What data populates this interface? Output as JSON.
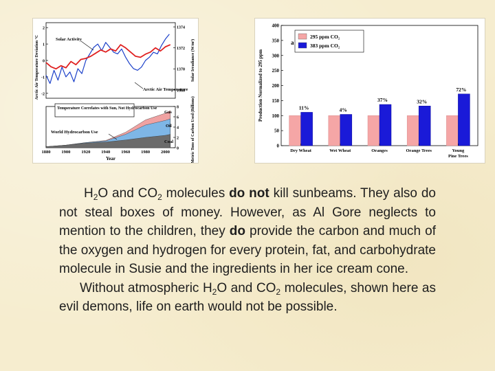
{
  "chart_data": [
    {
      "type": "line",
      "title": "",
      "xlabel": "Year",
      "ylabel_left": "Arctic Air Temperature Deviation °C",
      "ylabel_right": "Solar Irradiance (W/m²)",
      "ylabel_right2": "Metric Tons of Carbon Used (Billions)",
      "x_ticks": [
        "1880",
        "1900",
        "1920",
        "1940",
        "1960",
        "1980",
        "2000"
      ],
      "y_ticks_left": [
        "-2",
        "-1",
        "0",
        "1",
        "2"
      ],
      "y_ticks_right": [
        "1368",
        "1370",
        "1372",
        "1374"
      ],
      "y_ticks_carbon": [
        "0",
        "2",
        "4",
        "6",
        "8"
      ],
      "annotations": {
        "solar_activity": "Solar Activity",
        "arctic_air_temperature": "Arctic Air Temperature",
        "temp_correlates": "Temperature Correlates with Sun, Not Hydrocarbon Use",
        "world_hydrocarbon_use": "World Hydrocarbon Use",
        "gas": "Gas",
        "oil": "Oil",
        "coal": "Coal"
      },
      "x_range": [
        1880,
        2010
      ],
      "series": [
        {
          "name": "Solar Activity",
          "axis": "Solar Irradiance (W/m²)",
          "color": "#e02020",
          "x": [
            1880,
            1885,
            1890,
            1895,
            1900,
            1905,
            1910,
            1915,
            1920,
            1925,
            1930,
            1935,
            1940,
            1945,
            1950,
            1955,
            1960,
            1965,
            1970,
            1975,
            1980,
            1985,
            1990,
            1995,
            2000,
            2005
          ],
          "values": [
            1370.6,
            1370.2,
            1370.0,
            1370.3,
            1370.1,
            1370.7,
            1370.4,
            1370.9,
            1371.0,
            1371.2,
            1371.5,
            1371.8,
            1371.6,
            1371.9,
            1371.7,
            1372.3,
            1372.0,
            1371.6,
            1371.2,
            1371.1,
            1371.4,
            1371.6,
            1372.0,
            1371.7,
            1372.1,
            1372.3
          ]
        },
        {
          "name": "Arctic Air Temperature",
          "axis": "Arctic Air Temperature Deviation °C",
          "color": "#1a3fc9",
          "x": [
            1880,
            1884,
            1888,
            1892,
            1896,
            1900,
            1904,
            1908,
            1912,
            1916,
            1920,
            1924,
            1928,
            1932,
            1936,
            1940,
            1944,
            1948,
            1952,
            1956,
            1960,
            1964,
            1968,
            1972,
            1976,
            1980,
            1984,
            1988,
            1992,
            1996,
            2000,
            2004
          ],
          "values": [
            -0.9,
            -1.4,
            -0.6,
            -1.2,
            -0.4,
            -1.0,
            -0.7,
            -1.3,
            -0.5,
            -0.8,
            0.0,
            0.4,
            0.8,
            1.0,
            0.6,
            1.1,
            0.8,
            0.5,
            0.4,
            0.7,
            0.2,
            -0.2,
            -0.5,
            -0.6,
            -0.4,
            0.0,
            0.2,
            0.5,
            0.4,
            0.9,
            1.3,
            1.6
          ]
        },
        {
          "name": "Coal",
          "axis": "Metric Tons of Carbon Used (Billions)",
          "color": "#6b6b6b",
          "x": [
            1880,
            1900,
            1920,
            1940,
            1960,
            1980,
            2000,
            2005
          ],
          "values": [
            0.2,
            0.5,
            0.9,
            1.1,
            1.5,
            2.0,
            2.4,
            2.6
          ]
        },
        {
          "name": "Oil",
          "axis": "Metric Tons of Carbon Used (Billions)",
          "color": "#7eb6e6",
          "x": [
            1880,
            1900,
            1920,
            1940,
            1960,
            1980,
            2000,
            2005
          ],
          "values": [
            0.2,
            0.5,
            1.0,
            1.3,
            2.6,
            4.4,
            5.3,
            5.6
          ]
        },
        {
          "name": "Gas",
          "axis": "Metric Tons of Carbon Used (Billions)",
          "color": "#f0a2a2",
          "x": [
            1880,
            1900,
            1920,
            1940,
            1960,
            1980,
            2000,
            2005
          ],
          "values": [
            0.2,
            0.5,
            1.0,
            1.4,
            3.0,
            5.4,
            6.7,
            7.2
          ]
        }
      ]
    },
    {
      "type": "bar",
      "title": "",
      "panel_label": "a",
      "xlabel": "",
      "ylabel": "Production Normalized to 295 ppm",
      "ylim": [
        0,
        400
      ],
      "y_ticks": [
        "0",
        "50",
        "100",
        "150",
        "200",
        "250",
        "300",
        "350",
        "400"
      ],
      "categories": [
        "Dry Wheat",
        "Wet Wheat",
        "Oranges",
        "Orange Trees",
        "Young Pine Trees"
      ],
      "series": [
        {
          "name": "295 ppm CO2",
          "color": "#f5a6a6",
          "values": [
            100,
            100,
            100,
            100,
            100
          ]
        },
        {
          "name": "383 ppm CO2",
          "color": "#1a1ad8",
          "values": [
            111,
            104,
            137,
            132,
            172
          ]
        }
      ],
      "bar_labels": [
        "11%",
        "4%",
        "37%",
        "32%",
        "72%"
      ],
      "legend": "top-right",
      "grid": false
    }
  ],
  "text": {
    "p1_a": "H",
    "p1_a_sub": "2",
    "p1_b": "O and CO",
    "p1_b_sub": "2",
    "p1_c": " molecules ",
    "p1_d_bold": "do not",
    "p1_e": " kill sunbeams. They also do not steal boxes of money. However, as Al Gore neglects to mention to the children, they ",
    "p1_f_bold": "do",
    "p1_g": " provide the carbon and much of the oxygen and hydrogen for every protein, fat, and carbohydrate molecule in Susie and the ingredients in her ice cream cone.",
    "p2_a": "Without atmospheric H",
    "p2_a_sub": "2",
    "p2_b": "O and CO",
    "p2_b_sub": "2",
    "p2_c": " molecules, shown here as evil demons, life on earth would not be possible."
  }
}
